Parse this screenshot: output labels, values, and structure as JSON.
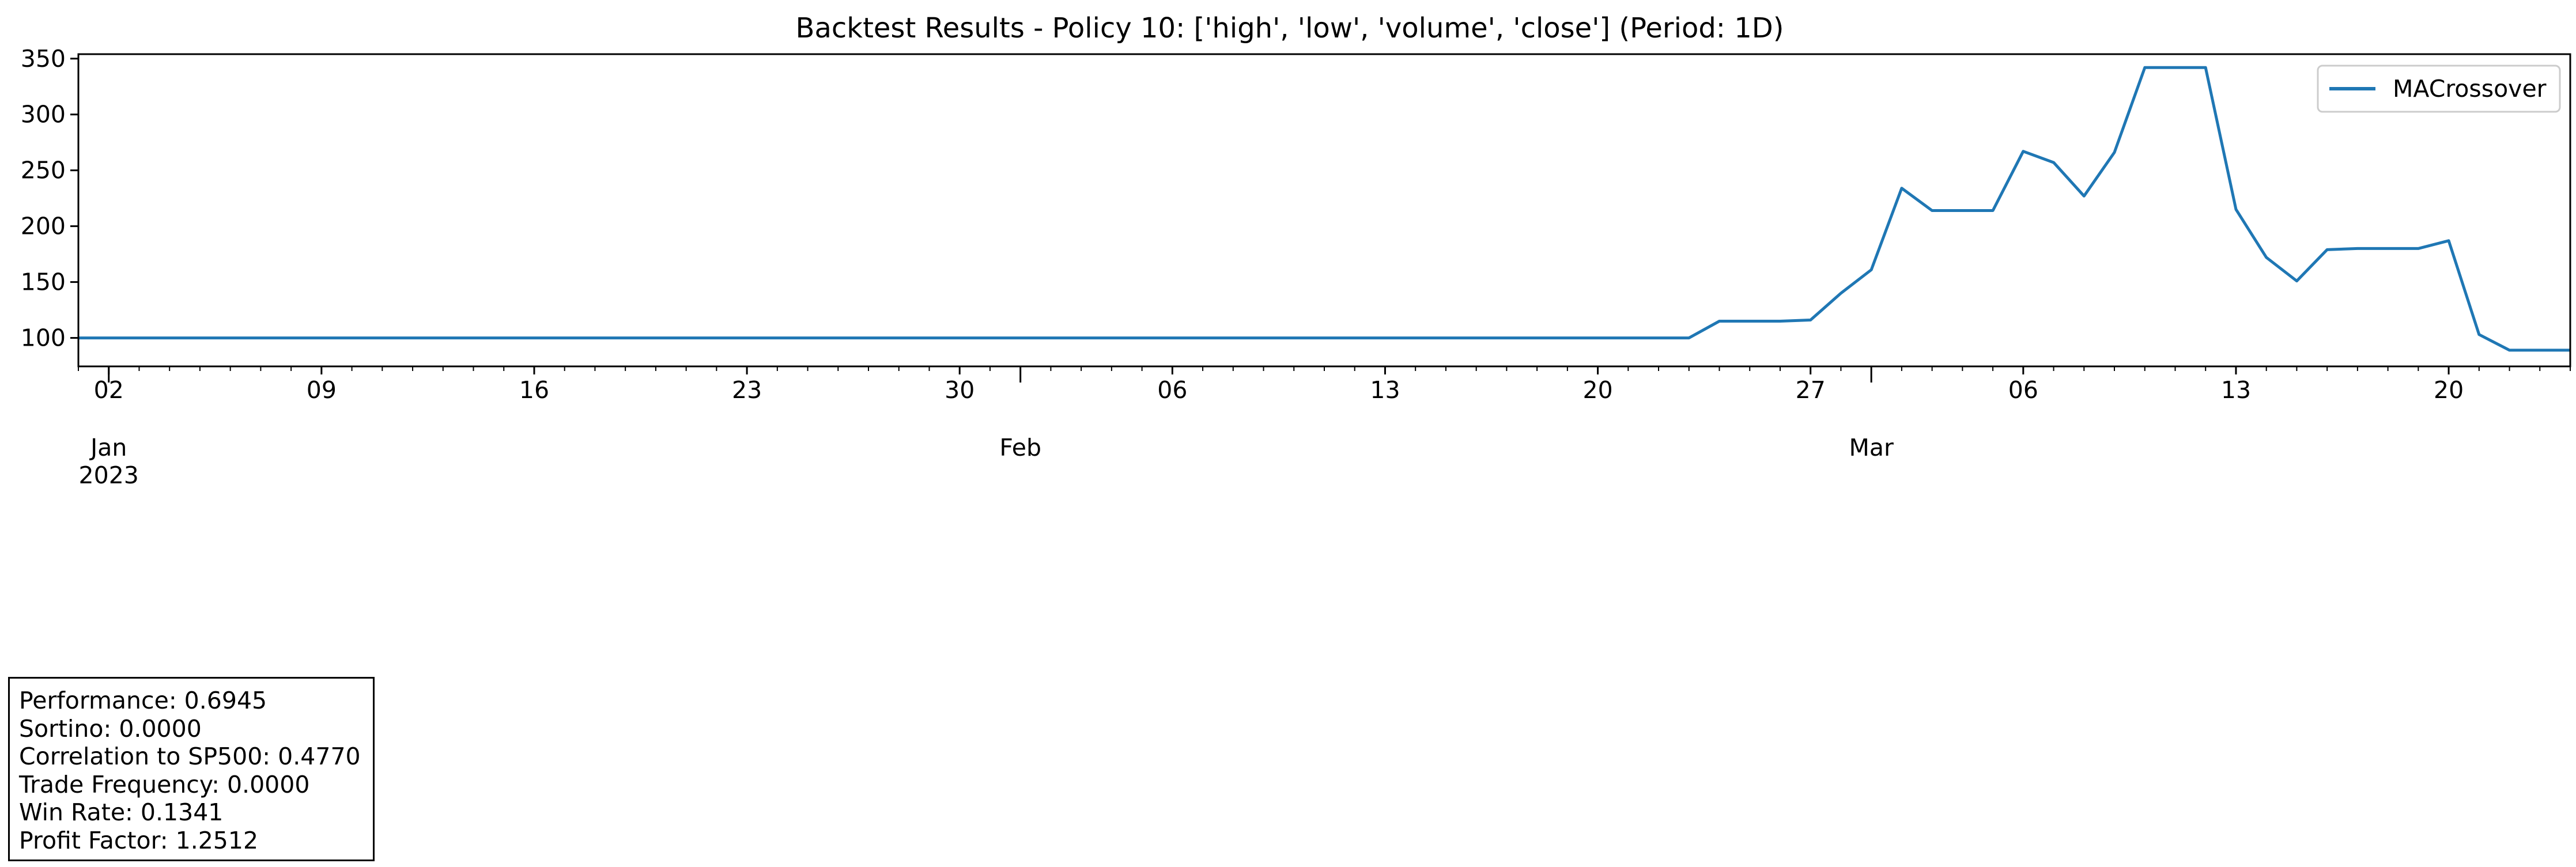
{
  "chart_data": {
    "type": "line",
    "title": "Backtest Results - Policy 10: ['high', 'low', 'volume', 'close'] (Period: 1D)",
    "xlabel": "",
    "ylabel": "",
    "x_range": [
      "2023-01-01",
      "2023-03-24"
    ],
    "ylim": [
      74.5,
      354
    ],
    "y_ticks": [
      100,
      150,
      200,
      250,
      300,
      350
    ],
    "grid": false,
    "legend_placement": "top-right",
    "x_day_ticks": [
      {
        "date": "2023-01-02",
        "label": "02"
      },
      {
        "date": "2023-01-09",
        "label": "09"
      },
      {
        "date": "2023-01-16",
        "label": "16"
      },
      {
        "date": "2023-01-23",
        "label": "23"
      },
      {
        "date": "2023-01-30",
        "label": "30"
      },
      {
        "date": "2023-02-06",
        "label": "06"
      },
      {
        "date": "2023-02-13",
        "label": "13"
      },
      {
        "date": "2023-02-20",
        "label": "20"
      },
      {
        "date": "2023-02-27",
        "label": "27"
      },
      {
        "date": "2023-03-06",
        "label": "06"
      },
      {
        "date": "2023-03-13",
        "label": "13"
      },
      {
        "date": "2023-03-20",
        "label": "20"
      }
    ],
    "x_month_ticks": [
      {
        "date": "2023-01-02",
        "label": "Jan",
        "sublabel": "2023"
      },
      {
        "date": "2023-02-01",
        "label": "Feb",
        "sublabel": ""
      },
      {
        "date": "2023-03-01",
        "label": "Mar",
        "sublabel": ""
      }
    ],
    "series": [
      {
        "name": "MACrossover",
        "color": "#1f77b4",
        "points": [
          {
            "x": "2023-01-01",
            "y": 100
          },
          {
            "x": "2023-02-23",
            "y": 100
          },
          {
            "x": "2023-02-24",
            "y": 115
          },
          {
            "x": "2023-02-25",
            "y": 115
          },
          {
            "x": "2023-02-26",
            "y": 115
          },
          {
            "x": "2023-02-27",
            "y": 116
          },
          {
            "x": "2023-02-28",
            "y": 140
          },
          {
            "x": "2023-03-01",
            "y": 161
          },
          {
            "x": "2023-03-02",
            "y": 234
          },
          {
            "x": "2023-03-03",
            "y": 214
          },
          {
            "x": "2023-03-04",
            "y": 214
          },
          {
            "x": "2023-03-05",
            "y": 214
          },
          {
            "x": "2023-03-06",
            "y": 267
          },
          {
            "x": "2023-03-07",
            "y": 257
          },
          {
            "x": "2023-03-08",
            "y": 227
          },
          {
            "x": "2023-03-09",
            "y": 266
          },
          {
            "x": "2023-03-10",
            "y": 342
          },
          {
            "x": "2023-03-11",
            "y": 342
          },
          {
            "x": "2023-03-12",
            "y": 342
          },
          {
            "x": "2023-03-13",
            "y": 215
          },
          {
            "x": "2023-03-14",
            "y": 172
          },
          {
            "x": "2023-03-15",
            "y": 151
          },
          {
            "x": "2023-03-16",
            "y": 179
          },
          {
            "x": "2023-03-17",
            "y": 180
          },
          {
            "x": "2023-03-18",
            "y": 180
          },
          {
            "x": "2023-03-19",
            "y": 180
          },
          {
            "x": "2023-03-20",
            "y": 187
          },
          {
            "x": "2023-03-21",
            "y": 103
          },
          {
            "x": "2023-03-22",
            "y": 89
          },
          {
            "x": "2023-03-23",
            "y": 89
          },
          {
            "x": "2023-03-24",
            "y": 89
          }
        ]
      }
    ]
  },
  "stats": {
    "performance": "Performance: 0.6945",
    "sortino": "Sortino: 0.0000",
    "correlation": "Correlation to SP500: 0.4770",
    "trade_frequency": "Trade Frequency: 0.0000",
    "win_rate": "Win Rate: 0.1341",
    "profit_factor": "Profit Factor: 1.2512"
  }
}
